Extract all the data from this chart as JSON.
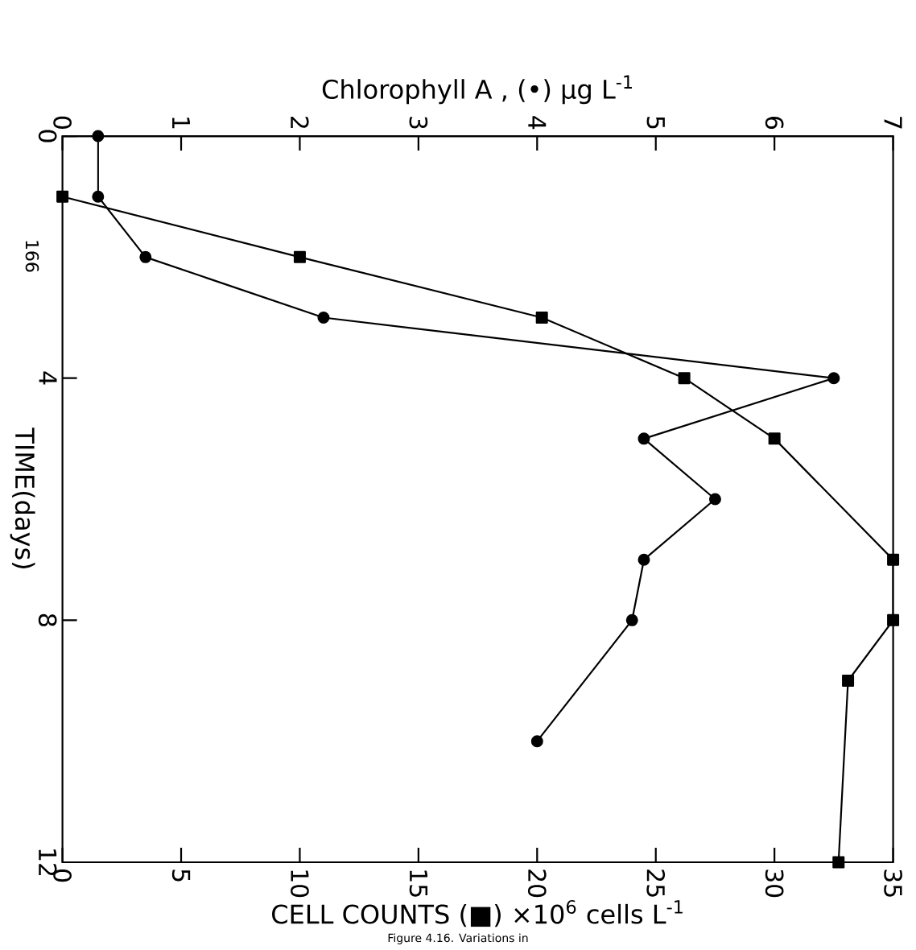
{
  "chart_data": {
    "type": "line",
    "orientation": "horizontal",
    "xlabel": "CELL COUNTS (■) ×10$^{6}$ cells L$^{-1}$",
    "x2label": "Chlorophyll A ,  (•)  μg L$^{-1}$",
    "ylabel": "TIME(days)",
    "xlim": [
      0,
      35
    ],
    "xticks": [
      0,
      5,
      10,
      15,
      20,
      25,
      30,
      35
    ],
    "x2lim": [
      0,
      7
    ],
    "x2ticks": [
      0,
      1,
      2,
      3,
      4,
      5,
      6,
      7
    ],
    "ylim": [
      12,
      0
    ],
    "yticks": [
      0,
      4,
      8,
      12
    ],
    "series": [
      {
        "color": "#000000",
        "marker": "circle",
        "axis": "x2",
        "x": [
          0,
          1,
          2,
          3,
          4,
          5,
          6,
          7,
          8,
          10
        ],
        "values": [
          0.3,
          0.3,
          0.7,
          2.2,
          6.5,
          4.9,
          5.5,
          4.9,
          4.8,
          4.0
        ]
      },
      {
        "color": "#000000",
        "marker": "square",
        "x": [
          1,
          2,
          3,
          4,
          5,
          7,
          8,
          9,
          12
        ],
        "values": [
          0,
          10,
          20.2,
          26.2,
          30,
          35,
          35,
          33.1,
          32.7
        ]
      }
    ],
    "annotations": [
      "166",
      "Figure 4.16. Variations in"
    ]
  }
}
